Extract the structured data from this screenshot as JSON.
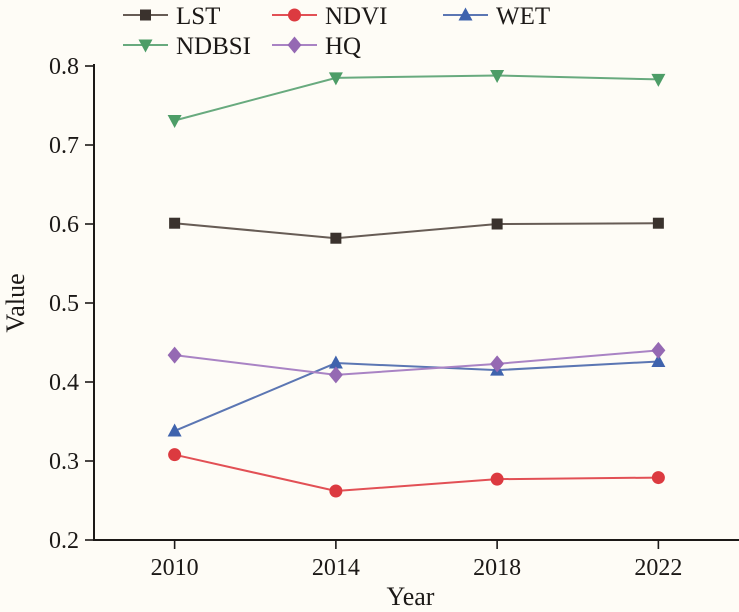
{
  "figure": {
    "background": "#fefcf6",
    "text_color": "#1c1917",
    "axis_color": "#1c1917"
  },
  "chart_data": {
    "type": "line",
    "title": "",
    "xlabel": "Year",
    "ylabel": "Value",
    "x": [
      2010,
      2014,
      2018,
      2022
    ],
    "xlim": [
      2008,
      2024
    ],
    "ylim": [
      0.2,
      0.8
    ],
    "yticks": [
      0.2,
      0.3,
      0.4,
      0.5,
      0.6,
      0.7,
      0.8
    ],
    "grid": false,
    "legend": {
      "position": "top-left",
      "rows": [
        [
          "LST",
          "NDVI",
          "WET"
        ],
        [
          "NDBSI",
          "HQ"
        ]
      ]
    },
    "series": [
      {
        "name": "LST",
        "marker": "square",
        "line_color": "#675c55",
        "marker_color": "#3a322d",
        "values": [
          0.601,
          0.582,
          0.6,
          0.601
        ]
      },
      {
        "name": "NDVI",
        "marker": "circle",
        "line_color": "#e25055",
        "marker_color": "#dc3a40",
        "values": [
          0.308,
          0.262,
          0.277,
          0.279
        ]
      },
      {
        "name": "WET",
        "marker": "triangle-up",
        "line_color": "#5b76b3",
        "marker_color": "#3f63ad",
        "values": [
          0.338,
          0.424,
          0.415,
          0.426
        ]
      },
      {
        "name": "NDBSI",
        "marker": "triangle-down",
        "line_color": "#68aa7e",
        "marker_color": "#4d9d67",
        "values": [
          0.731,
          0.785,
          0.788,
          0.783
        ]
      },
      {
        "name": "HQ",
        "marker": "diamond",
        "line_color": "#a983c4",
        "marker_color": "#9569b3",
        "values": [
          0.434,
          0.409,
          0.423,
          0.44
        ]
      }
    ]
  }
}
